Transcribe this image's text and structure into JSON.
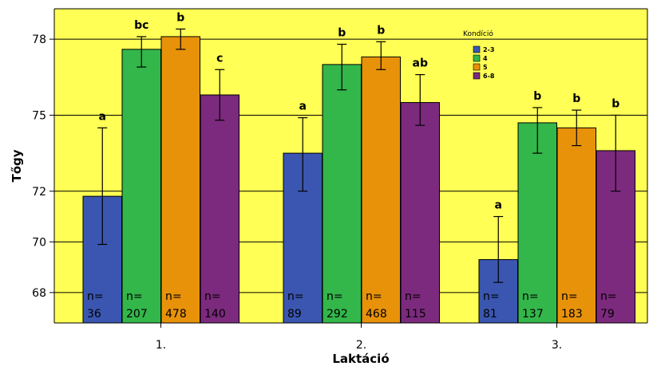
{
  "chart_data": {
    "type": "bar",
    "xlabel": "Laktáció",
    "ylabel": "Tőgy",
    "ylim": [
      66.8,
      79.2
    ],
    "yticks": [
      68,
      70,
      72,
      75,
      78
    ],
    "grid": true,
    "background_color": "#ffff55",
    "legend": {
      "title": "Kondíció",
      "placement": "top-right"
    },
    "categories": [
      "1.",
      "2.",
      "3."
    ],
    "series": [
      {
        "name": "2-3",
        "color": "#3a56b0",
        "values": [
          71.8,
          73.5,
          69.3
        ],
        "err_low": [
          69.9,
          72.0,
          68.4
        ],
        "err_high": [
          74.5,
          74.9,
          71.0
        ],
        "sig": [
          "a",
          "a",
          "a"
        ],
        "n_prefix": [
          "n=",
          "n=",
          "n="
        ],
        "n": [
          "36",
          "89",
          "81"
        ]
      },
      {
        "name": "4",
        "color": "#33b64a",
        "values": [
          77.6,
          77.0,
          74.7
        ],
        "err_low": [
          76.9,
          76.0,
          73.5
        ],
        "err_high": [
          78.1,
          77.8,
          75.3
        ],
        "sig": [
          "bc",
          "b",
          "b"
        ],
        "n_prefix": [
          "n=",
          "n=",
          "n="
        ],
        "n": [
          "207",
          "292",
          "137"
        ]
      },
      {
        "name": "5",
        "color": "#e8920a",
        "values": [
          78.1,
          77.3,
          74.5
        ],
        "err_low": [
          77.6,
          76.8,
          73.8
        ],
        "err_high": [
          78.4,
          77.9,
          75.2
        ],
        "sig": [
          "b",
          "b",
          "b"
        ],
        "n_prefix": [
          "n=",
          "n=",
          "n="
        ],
        "n": [
          "478",
          "468",
          "183"
        ]
      },
      {
        "name": "6-8",
        "color": "#7c2a7e",
        "values": [
          75.8,
          75.5,
          73.6
        ],
        "err_low": [
          74.8,
          74.6,
          72.0
        ],
        "err_high": [
          76.8,
          76.6,
          75.0
        ],
        "sig": [
          "c",
          "ab",
          "b"
        ],
        "n_prefix": [
          "n=",
          "n=",
          "n="
        ],
        "n": [
          "140",
          "115",
          "79"
        ]
      }
    ]
  }
}
